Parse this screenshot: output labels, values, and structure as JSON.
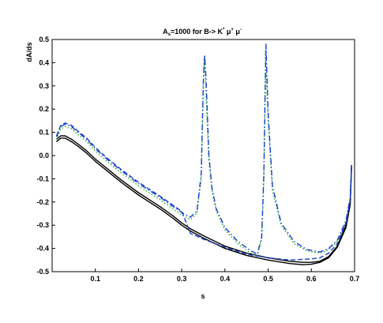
{
  "chart_data": {
    "type": "line",
    "title_parts": {
      "a": "A",
      "a_sub": "s",
      "b": "=1000 for  B-> K",
      "k_sup": "*",
      "mu1": " μ",
      "mu1_sup": "+",
      "mu2": " μ",
      "mu2_sup": "-"
    },
    "xlabel": "s",
    "ylabel": "dA/ds",
    "xlim": [
      0.0,
      0.7
    ],
    "ylim": [
      -0.5,
      0.5
    ],
    "x_ticks": [
      {
        "value": 0.1,
        "label": "0.1"
      },
      {
        "value": 0.2,
        "label": "0.2"
      },
      {
        "value": 0.3,
        "label": "0.3"
      },
      {
        "value": 0.4,
        "label": "0.4"
      },
      {
        "value": 0.5,
        "label": "0.5"
      },
      {
        "value": 0.6,
        "label": "0.6"
      },
      {
        "value": 0.7,
        "label": "0.7"
      }
    ],
    "y_ticks": [
      {
        "value": 0.5,
        "label": "0.5"
      },
      {
        "value": 0.4,
        "label": "0.4"
      },
      {
        "value": 0.3,
        "label": "0.3"
      },
      {
        "value": 0.2,
        "label": "0.2"
      },
      {
        "value": 0.1,
        "label": "0.1"
      },
      {
        "value": 0.0,
        "label": "0.0"
      },
      {
        "value": -0.1,
        "label": "-0.1"
      },
      {
        "value": -0.2,
        "label": "-0.2"
      },
      {
        "value": -0.3,
        "label": "-0.3"
      },
      {
        "value": -0.4,
        "label": "-0.4"
      },
      {
        "value": -0.5,
        "label": "-0.5"
      }
    ],
    "grid": false,
    "legend": "none",
    "series": [
      {
        "color": "#000000",
        "dash": "solid",
        "points": [
          [
            0.01,
            0.07
          ],
          [
            0.02,
            0.085
          ],
          [
            0.03,
            0.085
          ],
          [
            0.045,
            0.07
          ],
          [
            0.06,
            0.05
          ],
          [
            0.08,
            0.02
          ],
          [
            0.1,
            -0.015
          ],
          [
            0.13,
            -0.06
          ],
          [
            0.16,
            -0.105
          ],
          [
            0.2,
            -0.16
          ],
          [
            0.25,
            -0.22
          ],
          [
            0.28,
            -0.26
          ],
          [
            0.3,
            -0.29
          ],
          [
            0.32,
            -0.315
          ],
          [
            0.35,
            -0.345
          ],
          [
            0.4,
            -0.39
          ],
          [
            0.45,
            -0.42
          ],
          [
            0.5,
            -0.44
          ],
          [
            0.55,
            -0.455
          ],
          [
            0.58,
            -0.46
          ],
          [
            0.6,
            -0.46
          ],
          [
            0.62,
            -0.455
          ],
          [
            0.64,
            -0.435
          ],
          [
            0.66,
            -0.39
          ],
          [
            0.68,
            -0.3
          ],
          [
            0.69,
            -0.2
          ],
          [
            0.693,
            -0.04
          ]
        ]
      },
      {
        "color": "#000000",
        "dash": "solid",
        "points": [
          [
            0.01,
            0.06
          ],
          [
            0.02,
            0.075
          ],
          [
            0.03,
            0.075
          ],
          [
            0.045,
            0.06
          ],
          [
            0.06,
            0.04
          ],
          [
            0.08,
            0.01
          ],
          [
            0.1,
            -0.025
          ],
          [
            0.13,
            -0.07
          ],
          [
            0.16,
            -0.115
          ],
          [
            0.2,
            -0.17
          ],
          [
            0.25,
            -0.23
          ],
          [
            0.28,
            -0.27
          ],
          [
            0.3,
            -0.3
          ],
          [
            0.32,
            -0.325
          ],
          [
            0.35,
            -0.355
          ],
          [
            0.4,
            -0.4
          ],
          [
            0.45,
            -0.43
          ],
          [
            0.5,
            -0.45
          ],
          [
            0.55,
            -0.465
          ],
          [
            0.58,
            -0.47
          ],
          [
            0.6,
            -0.468
          ],
          [
            0.62,
            -0.46
          ],
          [
            0.64,
            -0.44
          ],
          [
            0.66,
            -0.395
          ],
          [
            0.68,
            -0.31
          ],
          [
            0.69,
            -0.21
          ],
          [
            0.693,
            -0.05
          ]
        ]
      },
      {
        "color": "#22aa22",
        "dash": "dot",
        "points": [
          [
            0.01,
            0.07
          ],
          [
            0.02,
            0.115
          ],
          [
            0.03,
            0.125
          ],
          [
            0.045,
            0.115
          ],
          [
            0.06,
            0.09
          ],
          [
            0.08,
            0.06
          ],
          [
            0.1,
            0.02
          ],
          [
            0.13,
            -0.03
          ],
          [
            0.16,
            -0.075
          ],
          [
            0.2,
            -0.13
          ],
          [
            0.25,
            -0.19
          ],
          [
            0.3,
            -0.255
          ],
          [
            0.32,
            -0.275
          ],
          [
            0.335,
            -0.25
          ],
          [
            0.345,
            -0.1
          ],
          [
            0.35,
            0.3
          ],
          [
            0.352,
            0.42
          ],
          [
            0.355,
            0.33
          ],
          [
            0.362,
            0.0
          ],
          [
            0.37,
            -0.15
          ],
          [
            0.38,
            -0.24
          ],
          [
            0.4,
            -0.32
          ],
          [
            0.43,
            -0.38
          ],
          [
            0.46,
            -0.42
          ],
          [
            0.475,
            -0.43
          ],
          [
            0.485,
            -0.36
          ],
          [
            0.49,
            -0.1
          ],
          [
            0.494,
            0.45
          ],
          [
            0.5,
            0.15
          ],
          [
            0.51,
            -0.15
          ],
          [
            0.53,
            -0.3
          ],
          [
            0.56,
            -0.38
          ],
          [
            0.59,
            -0.41
          ],
          [
            0.62,
            -0.42
          ],
          [
            0.64,
            -0.405
          ],
          [
            0.66,
            -0.37
          ],
          [
            0.68,
            -0.29
          ],
          [
            0.69,
            -0.19
          ],
          [
            0.693,
            -0.04
          ]
        ]
      },
      {
        "color": "#1a3fd0",
        "dash": "dashdot",
        "points": [
          [
            0.01,
            0.08
          ],
          [
            0.02,
            0.125
          ],
          [
            0.03,
            0.135
          ],
          [
            0.045,
            0.125
          ],
          [
            0.06,
            0.1
          ],
          [
            0.08,
            0.07
          ],
          [
            0.1,
            0.03
          ],
          [
            0.13,
            -0.02
          ],
          [
            0.16,
            -0.065
          ],
          [
            0.2,
            -0.12
          ],
          [
            0.25,
            -0.18
          ],
          [
            0.3,
            -0.245
          ],
          [
            0.32,
            -0.265
          ],
          [
            0.335,
            -0.24
          ],
          [
            0.345,
            -0.08
          ],
          [
            0.35,
            0.32
          ],
          [
            0.353,
            0.435
          ],
          [
            0.356,
            0.34
          ],
          [
            0.363,
            0.0
          ],
          [
            0.37,
            -0.14
          ],
          [
            0.38,
            -0.23
          ],
          [
            0.4,
            -0.31
          ],
          [
            0.43,
            -0.37
          ],
          [
            0.46,
            -0.41
          ],
          [
            0.475,
            -0.425
          ],
          [
            0.485,
            -0.35
          ],
          [
            0.49,
            -0.08
          ],
          [
            0.495,
            0.48
          ],
          [
            0.5,
            0.18
          ],
          [
            0.51,
            -0.13
          ],
          [
            0.53,
            -0.29
          ],
          [
            0.56,
            -0.37
          ],
          [
            0.59,
            -0.405
          ],
          [
            0.62,
            -0.415
          ],
          [
            0.64,
            -0.4
          ],
          [
            0.66,
            -0.365
          ],
          [
            0.68,
            -0.28
          ],
          [
            0.69,
            -0.18
          ],
          [
            0.693,
            -0.03
          ]
        ]
      },
      {
        "color": "#1a3fd0",
        "dash": "dash",
        "points": [
          [
            0.01,
            0.085
          ],
          [
            0.02,
            0.13
          ],
          [
            0.03,
            0.14
          ],
          [
            0.045,
            0.13
          ],
          [
            0.06,
            0.105
          ],
          [
            0.08,
            0.075
          ],
          [
            0.1,
            0.035
          ],
          [
            0.13,
            -0.015
          ],
          [
            0.16,
            -0.06
          ],
          [
            0.2,
            -0.115
          ],
          [
            0.25,
            -0.175
          ],
          [
            0.3,
            -0.24
          ],
          [
            0.32,
            -0.335
          ],
          [
            0.35,
            -0.36
          ],
          [
            0.4,
            -0.395
          ],
          [
            0.45,
            -0.425
          ],
          [
            0.5,
            -0.44
          ],
          [
            0.55,
            -0.45
          ],
          [
            0.6,
            -0.445
          ],
          [
            0.62,
            -0.44
          ],
          [
            0.64,
            -0.42
          ],
          [
            0.66,
            -0.38
          ],
          [
            0.68,
            -0.29
          ],
          [
            0.69,
            -0.19
          ],
          [
            0.693,
            -0.035
          ]
        ]
      }
    ]
  }
}
